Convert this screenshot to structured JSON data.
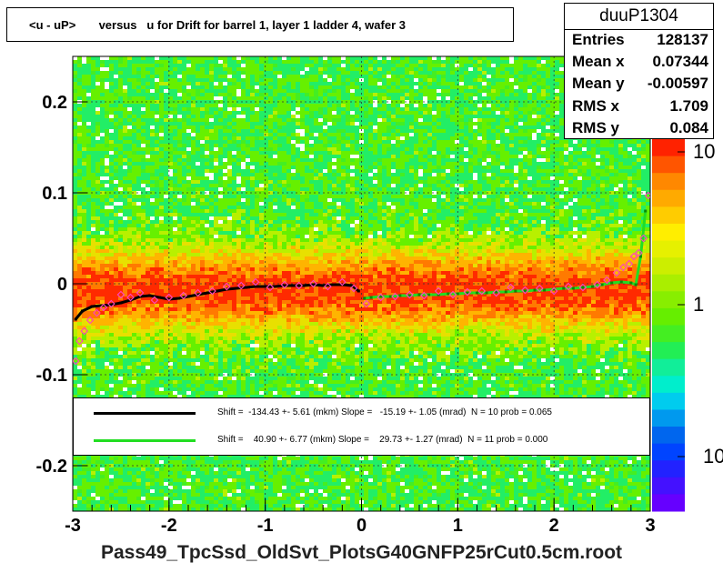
{
  "chart_data": {
    "type": "heatmap",
    "title": "<u - uP>       versus   u for Drift for barrel 1, layer 1 ladder 4, wafer 3",
    "xlabel": "",
    "ylabel": "",
    "xlim": [
      -3,
      3
    ],
    "ylim": [
      -0.25,
      0.25
    ],
    "x_ticks": [
      "-3",
      "-2",
      "-1",
      "0",
      "1",
      "2",
      "3"
    ],
    "y_ticks": [
      "-0.2",
      "-0.1",
      "0",
      "0.1",
      "0.2"
    ],
    "z_ticks": [
      "10",
      "1",
      "10"
    ],
    "grid": true,
    "log_z": true,
    "stats": {
      "name": "duuP1304",
      "rows": [
        {
          "label": "Entries",
          "value": "128137"
        },
        {
          "label": "Mean x",
          "value": "0.07344"
        },
        {
          "label": "Mean y",
          "value": "-0.00597"
        },
        {
          "label": "RMS x",
          "value": "1.709"
        },
        {
          "label": "RMS y",
          "value": "0.084"
        }
      ]
    },
    "series": [
      {
        "color": "#000000",
        "label": "Shift =  -134.43 +- 5.61 (mkm) Slope =   -15.19 +- 1.05 (mrad)  N = 10 prob = 0.065",
        "x": [
          -2.97,
          -2.9,
          -2.8,
          -2.7,
          -2.6,
          -2.5,
          -2.4,
          -2.3,
          -2.2,
          -2.1,
          -2.0,
          -1.9,
          -1.8,
          -1.7,
          -1.6,
          -1.5,
          -1.4,
          -1.3,
          -1.2,
          -1.1,
          -1.0,
          -0.9,
          -0.8,
          -0.7,
          -0.6,
          -0.5,
          -0.4,
          -0.3,
          -0.2,
          -0.1,
          -0.03
        ],
        "y": [
          -0.039,
          -0.03,
          -0.025,
          -0.024,
          -0.023,
          -0.021,
          -0.018,
          -0.014,
          -0.013,
          -0.015,
          -0.017,
          -0.016,
          -0.014,
          -0.012,
          -0.01,
          -0.008,
          -0.006,
          -0.005,
          -0.004,
          -0.003,
          -0.003,
          -0.003,
          -0.002,
          -0.002,
          -0.002,
          -0.001,
          -0.002,
          -0.001,
          -0.001,
          -0.002,
          -0.008
        ]
      },
      {
        "color": "#22dd22",
        "label": "Shift =    40.90 +- 6.77 (mkm) Slope =    29.73 +- 1.27 (mrad)  N = 11 prob = 0.000",
        "x": [
          0.03,
          0.1,
          0.2,
          0.3,
          0.4,
          0.5,
          0.6,
          0.7,
          0.8,
          0.9,
          1.0,
          1.1,
          1.2,
          1.3,
          1.4,
          1.5,
          1.6,
          1.7,
          1.8,
          1.9,
          2.0,
          2.1,
          2.2,
          2.3,
          2.4,
          2.5,
          2.6,
          2.7,
          2.8,
          2.85,
          2.9,
          2.95
        ],
        "y": [
          -0.016,
          -0.015,
          -0.014,
          -0.014,
          -0.013,
          -0.013,
          -0.012,
          -0.012,
          -0.012,
          -0.011,
          -0.011,
          -0.01,
          -0.01,
          -0.01,
          -0.009,
          -0.009,
          -0.008,
          -0.008,
          -0.007,
          -0.007,
          -0.006,
          -0.005,
          -0.005,
          -0.004,
          -0.003,
          -0.001,
          0.001,
          0.002,
          0.001,
          -0.001,
          0.03,
          0.08
        ]
      }
    ],
    "markers": {
      "color": "#ff44bb",
      "x": [
        -2.97,
        -2.93,
        -2.88,
        -2.82,
        -2.75,
        -2.68,
        -2.6,
        -2.5,
        -2.4,
        -2.3,
        -2.15,
        -2.0,
        -1.85,
        -1.7,
        -1.55,
        -1.4,
        -1.25,
        -1.1,
        -0.95,
        -0.8,
        -0.65,
        -0.5,
        -0.35,
        -0.2,
        -0.08,
        0.05,
        0.2,
        0.35,
        0.5,
        0.65,
        0.8,
        0.95,
        1.1,
        1.25,
        1.4,
        1.55,
        1.7,
        1.85,
        2.0,
        2.15,
        2.3,
        2.45,
        2.55,
        2.65,
        2.72,
        2.78,
        2.83,
        2.88,
        2.93,
        2.98
      ],
      "y": [
        -0.085,
        -0.063,
        -0.052,
        -0.04,
        -0.032,
        -0.026,
        -0.022,
        -0.012,
        -0.015,
        -0.01,
        -0.018,
        -0.015,
        -0.013,
        -0.01,
        -0.008,
        -0.003,
        -0.002,
        0.002,
        -0.004,
        -0.001,
        -0.002,
        0.0,
        -0.003,
        0.002,
        -0.005,
        -0.022,
        -0.015,
        -0.014,
        -0.012,
        -0.013,
        -0.008,
        -0.012,
        -0.009,
        -0.008,
        -0.01,
        -0.004,
        -0.007,
        -0.005,
        -0.008,
        -0.003,
        -0.004,
        -0.001,
        0.004,
        0.012,
        0.018,
        0.022,
        0.03,
        0.034,
        0.05,
        0.097
      ]
    }
  }
}
